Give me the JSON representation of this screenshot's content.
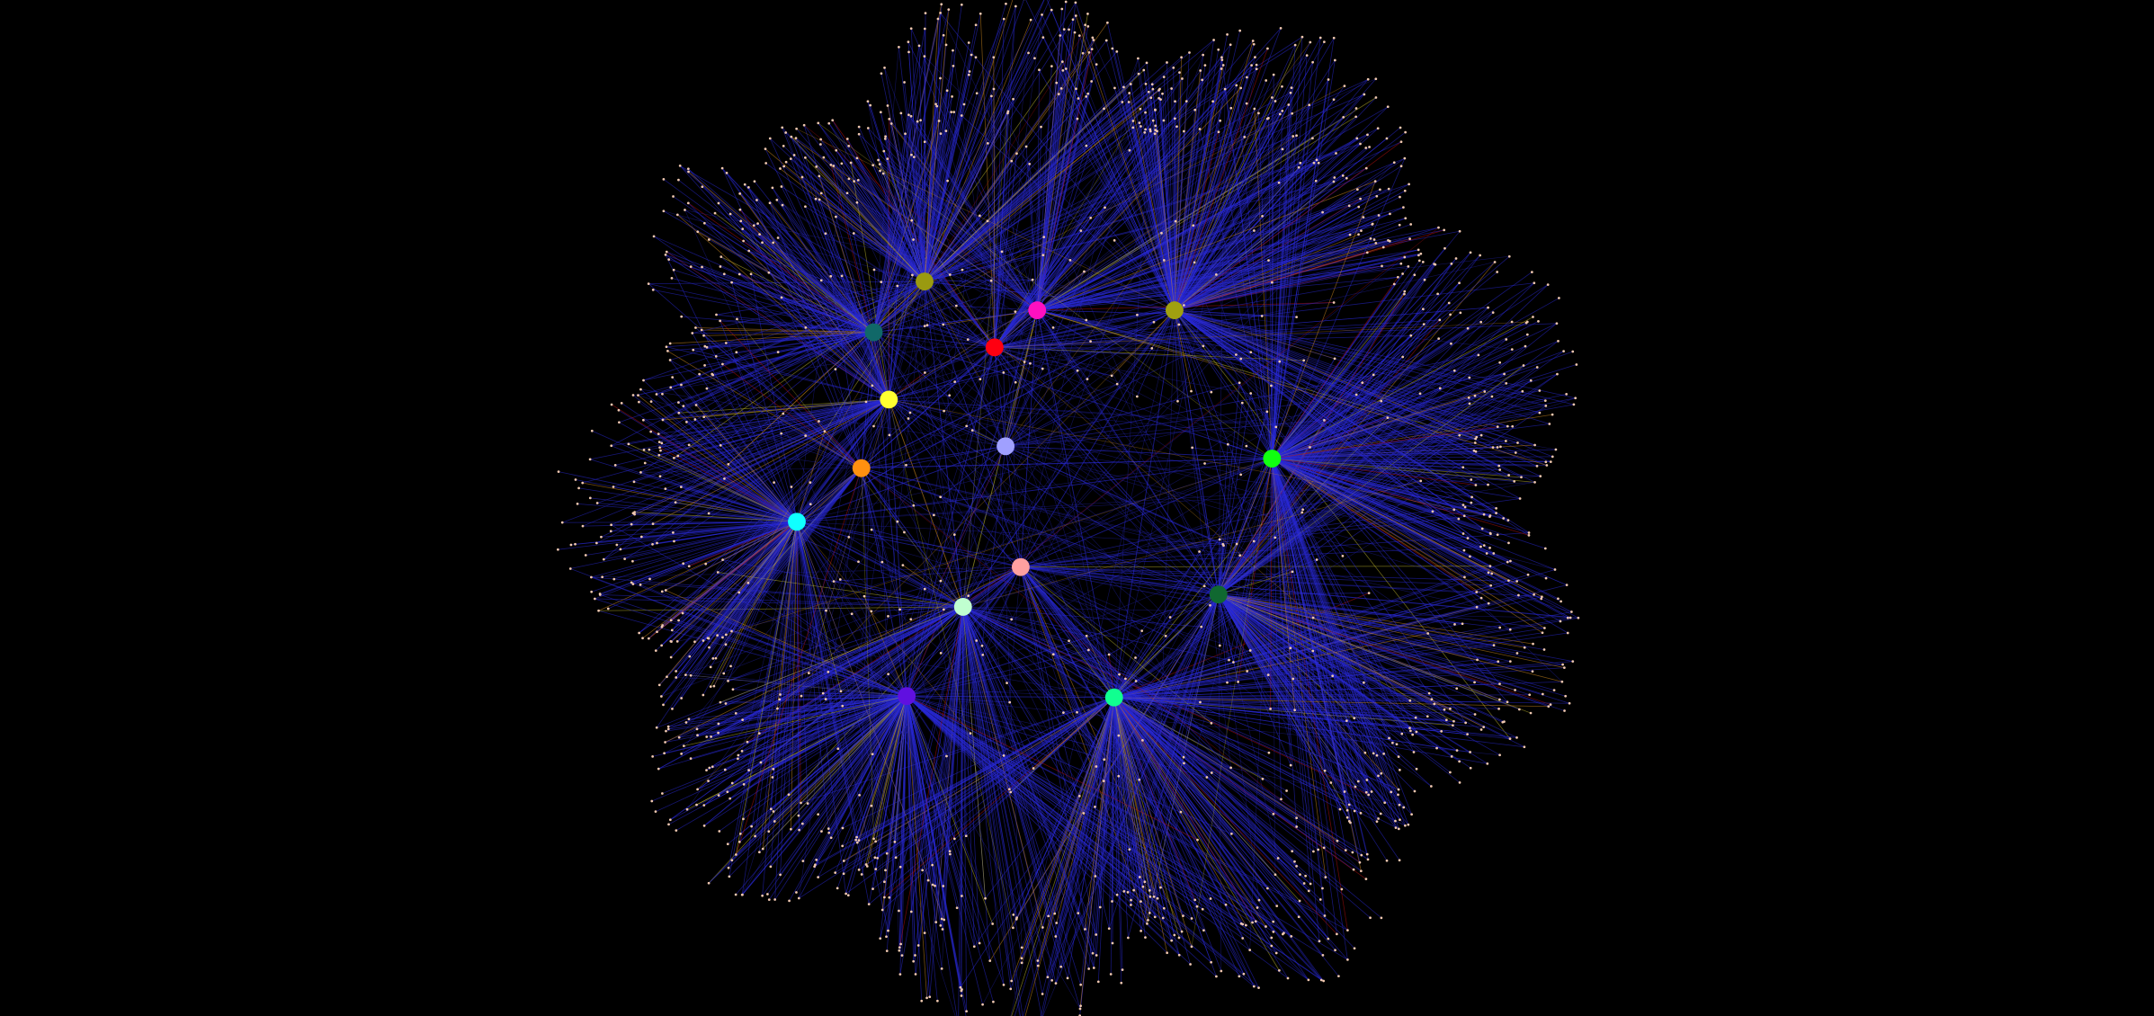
{
  "nodes": [
    {
      "color": "#9a9a10"
    },
    {
      "color": "#ff10c0"
    },
    {
      "color": "#a0a010"
    },
    {
      "color": "#106868"
    },
    {
      "color": "#ff0010"
    },
    {
      "color": "#ffff30"
    },
    {
      "color": "#a0a0ff"
    },
    {
      "color": "#10ff10"
    },
    {
      "color": "#ff9010"
    },
    {
      "color": "#10ffff"
    },
    {
      "color": "#ffa0a0"
    },
    {
      "color": "#106830"
    },
    {
      "color": "#c0ffd0"
    },
    {
      "color": "#6010e0"
    },
    {
      "color": "#10ff90"
    }
  ]
}
